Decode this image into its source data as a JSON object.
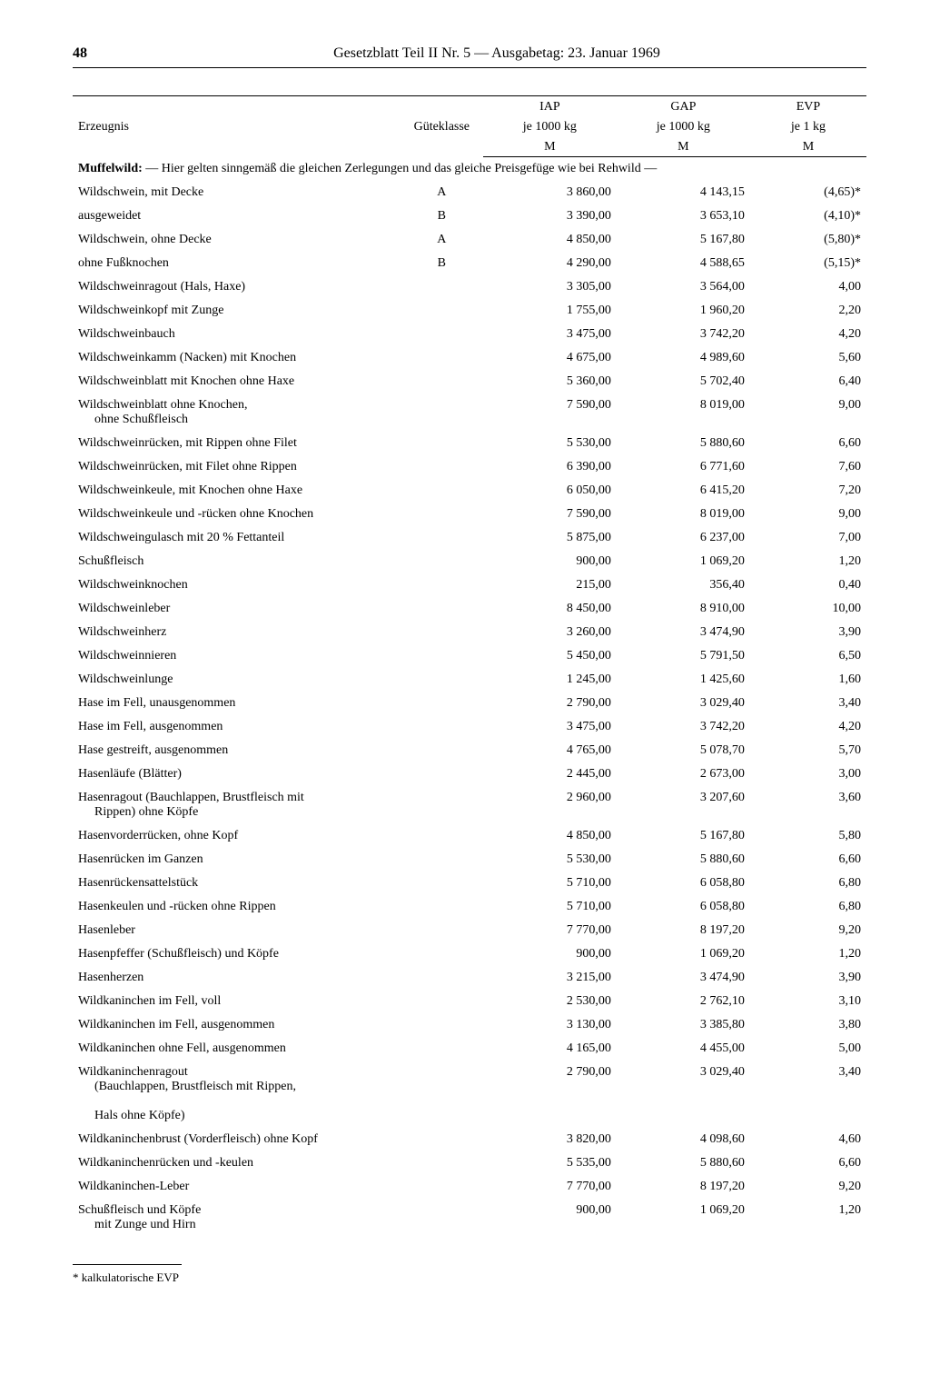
{
  "page_number": "48",
  "header_title": "Gesetzblatt Teil II Nr. 5 — Ausgabetag: 23. Januar 1969",
  "columns": {
    "erzeugnis": "Erzeugnis",
    "guteklasse": "Güteklasse",
    "iap_l1": "IAP",
    "iap_l2": "je 1000 kg",
    "iap_l3": "M",
    "gap_l1": "GAP",
    "gap_l2": "je 1000 kg",
    "gap_l3": "M",
    "evp_l1": "EVP",
    "evp_l2": "je 1 kg",
    "evp_l3": "M"
  },
  "note_bold": "Muffelwild:",
  "note_text": " — Hier gelten sinngemäß die gleichen Zerlegungen und das gleiche Preisgefüge wie bei Rehwild —",
  "rows": [
    {
      "erz": "Wildschwein, mit Decke",
      "gk": "A",
      "iap": "3 860,00",
      "gap": "4 143,15",
      "evp": "(4,65)*"
    },
    {
      "erz": "ausgeweidet",
      "gk": "B",
      "iap": "3 390,00",
      "gap": "3 653,10",
      "evp": "(4,10)*"
    },
    {
      "erz": "Wildschwein, ohne Decke",
      "gk": "A",
      "iap": "4 850,00",
      "gap": "5 167,80",
      "evp": "(5,80)*"
    },
    {
      "erz": "ohne Fußknochen",
      "gk": "B",
      "iap": "4 290,00",
      "gap": "4 588,65",
      "evp": "(5,15)*"
    },
    {
      "erz": "Wildschweinragout (Hals, Haxe)",
      "gk": "",
      "iap": "3 305,00",
      "gap": "3 564,00",
      "evp": "4,00"
    },
    {
      "erz": "Wildschweinkopf mit Zunge",
      "gk": "",
      "iap": "1 755,00",
      "gap": "1 960,20",
      "evp": "2,20"
    },
    {
      "erz": "Wildschweinbauch",
      "gk": "",
      "iap": "3 475,00",
      "gap": "3 742,20",
      "evp": "4,20"
    },
    {
      "erz": "Wildschweinkamm (Nacken) mit Knochen",
      "gk": "",
      "iap": "4 675,00",
      "gap": "4 989,60",
      "evp": "5,60"
    },
    {
      "erz": "Wildschweinblatt mit Knochen ohne Haxe",
      "gk": "",
      "iap": "5 360,00",
      "gap": "5 702,40",
      "evp": "6,40"
    },
    {
      "erz": "Wildschweinblatt ohne Knochen,<br><span class='indent'>ohne Schußfleisch</span>",
      "gk": "",
      "iap": "7 590,00",
      "gap": "8 019,00",
      "evp": "9,00"
    },
    {
      "erz": "Wildschweinrücken, mit Rippen ohne Filet",
      "gk": "",
      "iap": "5 530,00",
      "gap": "5 880,60",
      "evp": "6,60"
    },
    {
      "erz": "Wildschweinrücken, mit Filet ohne Rippen",
      "gk": "",
      "iap": "6 390,00",
      "gap": "6 771,60",
      "evp": "7,60"
    },
    {
      "erz": "Wildschweinkeule, mit Knochen ohne Haxe",
      "gk": "",
      "iap": "6 050,00",
      "gap": "6 415,20",
      "evp": "7,20"
    },
    {
      "erz": "Wildschweinkeule und -rücken ohne Knochen",
      "gk": "",
      "iap": "7 590,00",
      "gap": "8 019,00",
      "evp": "9,00"
    },
    {
      "erz": "Wildschweingulasch mit 20 % Fettanteil",
      "gk": "",
      "iap": "5 875,00",
      "gap": "6 237,00",
      "evp": "7,00"
    },
    {
      "erz": "Schußfleisch",
      "gk": "",
      "iap": "900,00",
      "gap": "1 069,20",
      "evp": "1,20"
    },
    {
      "erz": "Wildschweinknochen",
      "gk": "",
      "iap": "215,00",
      "gap": "356,40",
      "evp": "0,40"
    },
    {
      "erz": "Wildschweinleber",
      "gk": "",
      "iap": "8 450,00",
      "gap": "8 910,00",
      "evp": "10,00"
    },
    {
      "erz": "Wildschweinherz",
      "gk": "",
      "iap": "3 260,00",
      "gap": "3 474,90",
      "evp": "3,90"
    },
    {
      "erz": "Wildschweinnieren",
      "gk": "",
      "iap": "5 450,00",
      "gap": "5 791,50",
      "evp": "6,50"
    },
    {
      "erz": "Wildschweinlunge",
      "gk": "",
      "iap": "1 245,00",
      "gap": "1 425,60",
      "evp": "1,60"
    },
    {
      "erz": "Hase im Fell, unausgenommen",
      "gk": "",
      "iap": "2 790,00",
      "gap": "3 029,40",
      "evp": "3,40"
    },
    {
      "erz": "Hase im Fell, ausgenommen",
      "gk": "",
      "iap": "3 475,00",
      "gap": "3 742,20",
      "evp": "4,20"
    },
    {
      "erz": "Hase gestreift, ausgenommen",
      "gk": "",
      "iap": "4 765,00",
      "gap": "5 078,70",
      "evp": "5,70"
    },
    {
      "erz": "Hasenläufe (Blätter)",
      "gk": "",
      "iap": "2 445,00",
      "gap": "2 673,00",
      "evp": "3,00"
    },
    {
      "erz": "Hasenragout (Bauchlappen, Brustfleisch mit<br><span class='indent'>Rippen) ohne Köpfe</span>",
      "gk": "",
      "iap": "2 960,00",
      "gap": "3 207,60",
      "evp": "3,60"
    },
    {
      "erz": "Hasenvorderrücken, ohne Kopf",
      "gk": "",
      "iap": "4 850,00",
      "gap": "5 167,80",
      "evp": "5,80"
    },
    {
      "erz": "Hasenrücken im Ganzen",
      "gk": "",
      "iap": "5 530,00",
      "gap": "5 880,60",
      "evp": "6,60"
    },
    {
      "erz": "Hasenrückensattelstück",
      "gk": "",
      "iap": "5 710,00",
      "gap": "6 058,80",
      "evp": "6,80"
    },
    {
      "erz": "Hasenkeulen und -rücken ohne Rippen",
      "gk": "",
      "iap": "5 710,00",
      "gap": "6 058,80",
      "evp": "6,80"
    },
    {
      "erz": "Hasenleber",
      "gk": "",
      "iap": "7 770,00",
      "gap": "8 197,20",
      "evp": "9,20"
    },
    {
      "erz": "Hasenpfeffer (Schußfleisch) und Köpfe",
      "gk": "",
      "iap": "900,00",
      "gap": "1 069,20",
      "evp": "1,20"
    },
    {
      "erz": "Hasenherzen",
      "gk": "",
      "iap": "3 215,00",
      "gap": "3 474,90",
      "evp": "3,90"
    },
    {
      "erz": "Wildkaninchen im Fell, voll",
      "gk": "",
      "iap": "2 530,00",
      "gap": "2 762,10",
      "evp": "3,10"
    },
    {
      "erz": "Wildkaninchen im Fell, ausgenommen",
      "gk": "",
      "iap": "3 130,00",
      "gap": "3 385,80",
      "evp": "3,80"
    },
    {
      "erz": "Wildkaninchen ohne Fell, ausgenommen",
      "gk": "",
      "iap": "4 165,00",
      "gap": "4 455,00",
      "evp": "5,00"
    },
    {
      "erz": "Wildkaninchenragout<br><span class='indent'>(Bauchlappen, Brustfleisch mit Rippen,</span><br><span class='indent'>Hals ohne Köpfe)</span>",
      "gk": "",
      "iap": "2 790,00",
      "gap": "3 029,40",
      "evp": "3,40"
    },
    {
      "erz": "Wildkaninchenbrust (Vorderfleisch) ohne Kopf",
      "gk": "",
      "iap": "3 820,00",
      "gap": "4 098,60",
      "evp": "4,60"
    },
    {
      "erz": "Wildkaninchenrücken und -keulen",
      "gk": "",
      "iap": "5 535,00",
      "gap": "5 880,60",
      "evp": "6,60"
    },
    {
      "erz": "Wildkaninchen-Leber",
      "gk": "",
      "iap": "7 770,00",
      "gap": "8 197,20",
      "evp": "9,20"
    },
    {
      "erz": "Schußfleisch und Köpfe<br><span class='indent'>mit Zunge und Hirn</span>",
      "gk": "",
      "iap": "900,00",
      "gap": "1 069,20",
      "evp": "1,20"
    }
  ],
  "footnote": "* kalkulatorische EVP"
}
